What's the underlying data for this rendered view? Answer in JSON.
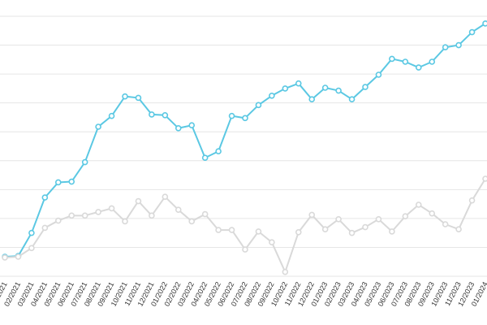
{
  "chart_data": {
    "type": "line",
    "title": "",
    "xlabel": "",
    "ylabel": "",
    "grid": true,
    "legend": "none",
    "ylim": [
      0,
      36
    ],
    "x": [
      "01/2021",
      "02/2021",
      "03/2021",
      "04/2021",
      "05/2021",
      "06/2021",
      "07/2021",
      "08/2021",
      "09/2021",
      "10/2021",
      "11/2021",
      "12/2021",
      "01/2022",
      "02/2022",
      "03/2022",
      "04/2022",
      "05/2022",
      "06/2022",
      "07/2022",
      "08/2022",
      "09/2022",
      "10/2022",
      "11/2022",
      "12/2022",
      "01/2023",
      "02/2023",
      "03/2023",
      "04/2023",
      "05/2023",
      "06/2023",
      "07/2023",
      "08/2023",
      "09/2023",
      "10/2023",
      "11/2023",
      "12/2023",
      "01/2024"
    ],
    "tick_labels": [
      "01/2021",
      "02/2021",
      "03/2021",
      "04/2021",
      "05/2021",
      "06/2021",
      "07/2021",
      "08/2021",
      "09/2021",
      "10/2021",
      "11/2021",
      "12/2021",
      "01/2022",
      "02/2022",
      "03/2022",
      "04/2022",
      "05/2022",
      "06/2022",
      "07/2022",
      "08/2022",
      "09/2022",
      "10/2022",
      "11/2022",
      "12/2022",
      "01/2023",
      "02/2023",
      "03/2023",
      "04/2023",
      "05/2023",
      "06/2023",
      "07/2023",
      "08/2023",
      "09/2023",
      "10/2023",
      "11/2023",
      "12/2023",
      "01/2024"
    ],
    "series": [
      {
        "color": "#5bc8e3",
        "values": [
          2.7,
          2.8,
          6.0,
          10.9,
          13.0,
          13.1,
          15.8,
          20.7,
          22.2,
          24.9,
          24.7,
          22.4,
          22.3,
          20.5,
          20.9,
          16.4,
          17.3,
          22.2,
          21.9,
          23.7,
          25.0,
          26.0,
          26.7,
          24.5,
          26.1,
          25.7,
          24.5,
          26.2,
          27.9,
          30.1,
          29.7,
          28.9,
          29.7,
          31.7,
          32.0,
          33.8,
          35.0
        ]
      },
      {
        "color": "#d9d9d9",
        "values": [
          2.6,
          2.7,
          3.9,
          6.7,
          7.7,
          8.4,
          8.4,
          8.9,
          9.4,
          7.6,
          10.4,
          8.4,
          11.0,
          9.2,
          7.6,
          8.6,
          6.4,
          6.4,
          3.7,
          6.2,
          4.7,
          0.6,
          6.1,
          8.5,
          6.5,
          7.9,
          6.0,
          6.8,
          7.9,
          6.2,
          8.3,
          9.9,
          8.7,
          7.2,
          6.5,
          10.5,
          13.5
        ]
      }
    ]
  }
}
